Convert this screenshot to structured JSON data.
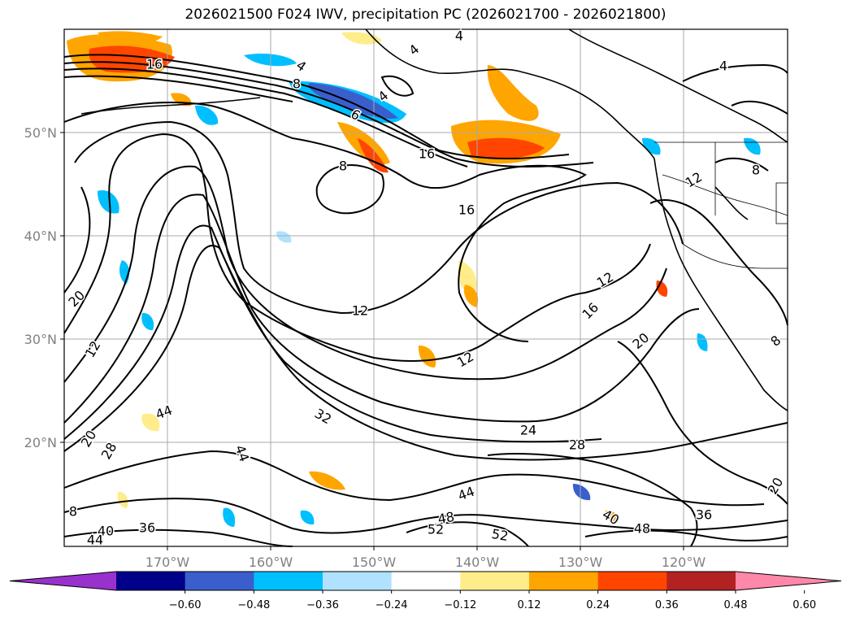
{
  "title": "2026021500 F024 IWV, precipitation PC (2026021700 - 2026021800)",
  "lon_ticks": [
    "170°W",
    "160°W",
    "150°W",
    "140°W",
    "130°W",
    "120°W"
  ],
  "lat_ticks": [
    "50°N",
    "40°N",
    "30°N",
    "20°N"
  ],
  "colorbar": {
    "colors": [
      "#9932cc",
      "#00008b",
      "#3a5fcd",
      "#00bfff",
      "#b0e2ff",
      "#ffffff",
      "#ffec8b",
      "#ffa500",
      "#ff4500",
      "#b22222",
      "#ff88aa"
    ],
    "labels": [
      "−0.60",
      "−0.48",
      "−0.36",
      "−0.24",
      "−0.12",
      "0.12",
      "0.24",
      "0.36",
      "0.48",
      "0.60"
    ]
  },
  "contour_labels": [
    "4",
    "4",
    "4",
    "4",
    "4",
    "8",
    "8",
    "8",
    "8",
    "12",
    "12",
    "12",
    "12",
    "16",
    "16",
    "16",
    "16",
    "20",
    "20",
    "20",
    "20",
    "24",
    "28",
    "28",
    "32",
    "36",
    "36",
    "40",
    "40",
    "44",
    "44",
    "44",
    "44",
    "48",
    "48",
    "52",
    "52",
    "6",
    "12",
    "8"
  ]
}
